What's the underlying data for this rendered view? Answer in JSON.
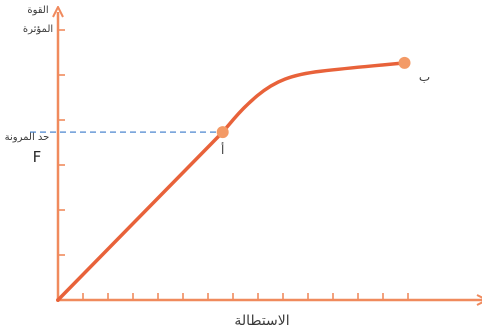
{
  "colors": {
    "axis": "#f08a5d",
    "curve": "#e8623a",
    "point": "#f39a66",
    "guide": "#6a9bd8",
    "text": "#3a3a3a"
  },
  "chart_data": {
    "type": "line",
    "ylabel": "القوة المؤثرة",
    "xlabel": "الاستطالة",
    "ylim": [
      0,
      1
    ],
    "xlim": [
      0,
      1
    ],
    "grid": false,
    "legend": "none",
    "series": [
      {
        "x": [
          0.0,
          0.394,
          0.446,
          0.509,
          0.577,
          0.68,
          0.829
        ],
        "y": [
          0.0,
          0.575,
          0.663,
          0.738,
          0.775,
          0.792,
          0.812
        ]
      }
    ],
    "points": [
      {
        "label": "أ",
        "x": 0.394,
        "y": 0.575
      },
      {
        "label": "ب",
        "x": 0.829,
        "y": 0.812
      }
    ],
    "reference_line": {
      "label": "حد المرونة",
      "symbol": "F",
      "y": 0.575
    },
    "x_tick_count": 14,
    "y_tick_count": 6
  }
}
